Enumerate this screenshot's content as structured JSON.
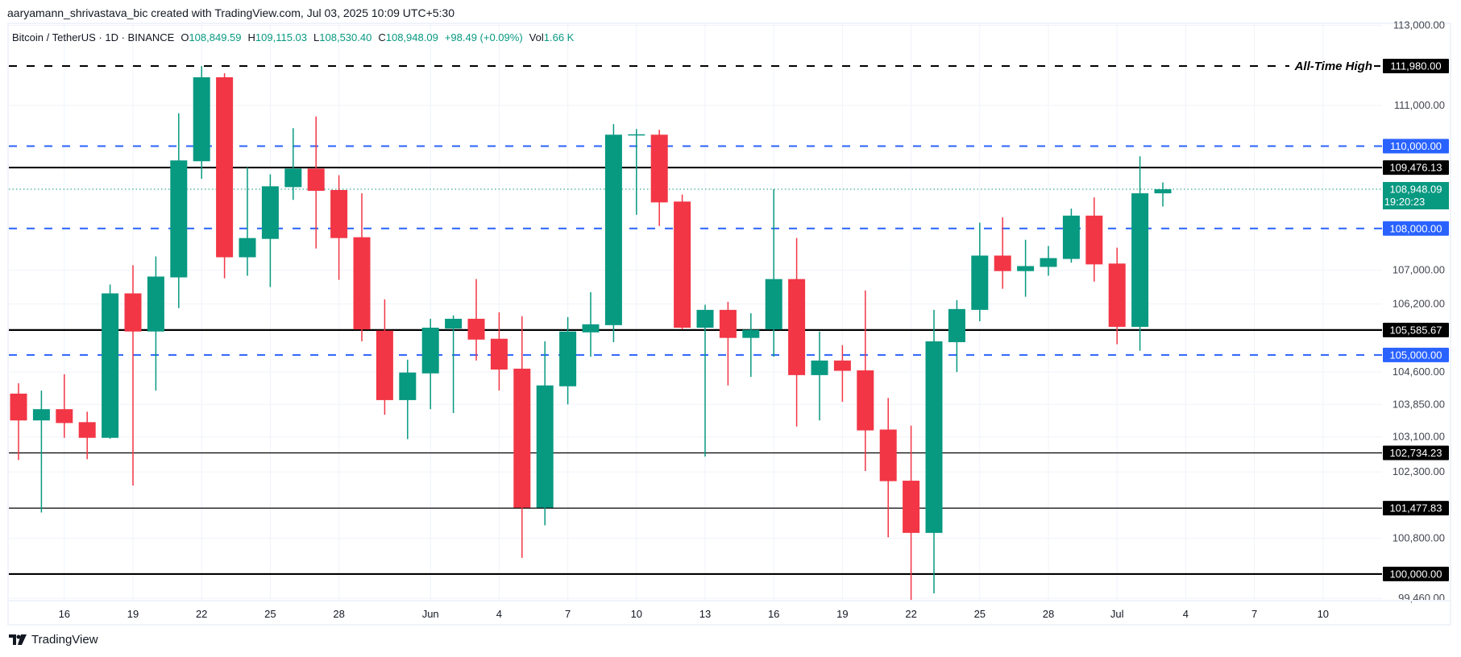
{
  "header": {
    "attribution": "aaryamann_shrivastava_bic created with TradingView.com, Jul 03, 2025 10:09 UTC+5:30"
  },
  "legend": {
    "symbol": "Bitcoin / TetherUS · 1D · BINANCE",
    "open_label": "O",
    "open": "108,849.59",
    "high_label": "H",
    "high": "109,115.03",
    "low_label": "L",
    "low": "108,530.40",
    "close_label": "C",
    "close": "108,948.09",
    "change": "+98.49 (+0.09%)",
    "vol_label": "Vol",
    "vol": "1.66 K"
  },
  "footer": {
    "brand": "TradingView",
    "logo_icon": "tradingview-logo-icon"
  },
  "colors": {
    "up": "#089981",
    "down": "#f23645",
    "level_blue": "#2962ff",
    "level_black": "#000000",
    "grid": "#f0f3fa"
  },
  "chart_data": {
    "type": "candlestick",
    "symbol": "BTCUSDT",
    "interval": "1D",
    "y_scale": "log",
    "ylim": [
      99460,
      113000
    ],
    "grid": true,
    "y_ticks": [
      "113,000.00",
      "111,000.00",
      "107,000.00",
      "106,200.00",
      "104,600.00",
      "103,850.00",
      "103,100.00",
      "102,300.00",
      "100,800.00",
      "99,460.00"
    ],
    "y_tick_values": [
      113000,
      111000,
      107000,
      106200,
      104600,
      103850,
      103100,
      102300,
      100800,
      99460
    ],
    "x_ticks": [
      {
        "label": "16",
        "date": "2025-05-16"
      },
      {
        "label": "19",
        "date": "2025-05-19"
      },
      {
        "label": "22",
        "date": "2025-05-22"
      },
      {
        "label": "25",
        "date": "2025-05-25"
      },
      {
        "label": "28",
        "date": "2025-05-28"
      },
      {
        "label": "Jun",
        "date": "2025-06-01"
      },
      {
        "label": "4",
        "date": "2025-06-04"
      },
      {
        "label": "7",
        "date": "2025-06-07"
      },
      {
        "label": "10",
        "date": "2025-06-10"
      },
      {
        "label": "13",
        "date": "2025-06-13"
      },
      {
        "label": "16",
        "date": "2025-06-16"
      },
      {
        "label": "19",
        "date": "2025-06-19"
      },
      {
        "label": "22",
        "date": "2025-06-22"
      },
      {
        "label": "25",
        "date": "2025-06-25"
      },
      {
        "label": "28",
        "date": "2025-06-28"
      },
      {
        "label": "Jul",
        "date": "2025-07-01"
      },
      {
        "label": "4",
        "date": "2025-07-04"
      },
      {
        "label": "7",
        "date": "2025-07-07"
      },
      {
        "label": "10",
        "date": "2025-07-10"
      }
    ],
    "levels": [
      {
        "price": 111980,
        "label": "111,980.00",
        "style": "dashed-black",
        "annotation": "All-Time High"
      },
      {
        "price": 110000,
        "label": "110,000.00",
        "style": "dashed-blue"
      },
      {
        "price": 109476.13,
        "label": "109,476.13",
        "style": "solid-black"
      },
      {
        "price": 108000,
        "label": "108,000.00",
        "style": "dashed-blue"
      },
      {
        "price": 105585.67,
        "label": "105,585.67",
        "style": "solid-black-thick"
      },
      {
        "price": 105000,
        "label": "105,000.00",
        "style": "dashed-blue"
      },
      {
        "price": 102734.23,
        "label": "102,734.23",
        "style": "solid-black-thin"
      },
      {
        "price": 101477.83,
        "label": "101,477.83",
        "style": "solid-black-thin"
      },
      {
        "price": 100000,
        "label": "100,000.00",
        "style": "solid-black-thick"
      }
    ],
    "last_price": {
      "price": 108948.09,
      "label": "108,948.09",
      "countdown": "19:20:23"
    },
    "candles": [
      {
        "d": "2025-05-14",
        "o": 104100,
        "h": 104340,
        "l": 102570,
        "c": 103480
      },
      {
        "d": "2025-05-15",
        "o": 103480,
        "h": 104170,
        "l": 101380,
        "c": 103740
      },
      {
        "d": "2025-05-16",
        "o": 103740,
        "h": 104550,
        "l": 103080,
        "c": 103420
      },
      {
        "d": "2025-05-17",
        "o": 103440,
        "h": 103680,
        "l": 102590,
        "c": 103080
      },
      {
        "d": "2025-05-18",
        "o": 103080,
        "h": 106660,
        "l": 103060,
        "c": 106450
      },
      {
        "d": "2025-05-19",
        "o": 106450,
        "h": 107120,
        "l": 101990,
        "c": 105550
      },
      {
        "d": "2025-05-20",
        "o": 105550,
        "h": 107330,
        "l": 104170,
        "c": 106850
      },
      {
        "d": "2025-05-21",
        "o": 106830,
        "h": 110810,
        "l": 106100,
        "c": 109650
      },
      {
        "d": "2025-05-22",
        "o": 109630,
        "h": 111980,
        "l": 109200,
        "c": 111700
      },
      {
        "d": "2025-05-23",
        "o": 111700,
        "h": 111800,
        "l": 106810,
        "c": 107310
      },
      {
        "d": "2025-05-24",
        "o": 107310,
        "h": 109480,
        "l": 106870,
        "c": 107770
      },
      {
        "d": "2025-05-25",
        "o": 107750,
        "h": 109310,
        "l": 106600,
        "c": 109020
      },
      {
        "d": "2025-05-26",
        "o": 109000,
        "h": 110440,
        "l": 108690,
        "c": 109450
      },
      {
        "d": "2025-05-27",
        "o": 109450,
        "h": 110730,
        "l": 107520,
        "c": 108910
      },
      {
        "d": "2025-05-28",
        "o": 108930,
        "h": 109290,
        "l": 106770,
        "c": 107770
      },
      {
        "d": "2025-05-29",
        "o": 107790,
        "h": 108850,
        "l": 105320,
        "c": 105600
      },
      {
        "d": "2025-05-30",
        "o": 105570,
        "h": 106310,
        "l": 103610,
        "c": 103950
      },
      {
        "d": "2025-05-31",
        "o": 103950,
        "h": 104890,
        "l": 103050,
        "c": 104590
      },
      {
        "d": "2025-06-01",
        "o": 104570,
        "h": 105850,
        "l": 103740,
        "c": 105640
      },
      {
        "d": "2025-06-02",
        "o": 105620,
        "h": 105930,
        "l": 103650,
        "c": 105850
      },
      {
        "d": "2025-06-03",
        "o": 105850,
        "h": 106790,
        "l": 104870,
        "c": 105360
      },
      {
        "d": "2025-06-04",
        "o": 105380,
        "h": 106000,
        "l": 104170,
        "c": 104660
      },
      {
        "d": "2025-06-05",
        "o": 104680,
        "h": 105910,
        "l": 100360,
        "c": 101490
      },
      {
        "d": "2025-06-06",
        "o": 101490,
        "h": 105320,
        "l": 101090,
        "c": 104290
      },
      {
        "d": "2025-06-07",
        "o": 104270,
        "h": 105890,
        "l": 103850,
        "c": 105550
      },
      {
        "d": "2025-06-08",
        "o": 105530,
        "h": 106480,
        "l": 104960,
        "c": 105720
      },
      {
        "d": "2025-06-09",
        "o": 105700,
        "h": 110540,
        "l": 105300,
        "c": 110280
      },
      {
        "d": "2025-06-10",
        "o": 110280,
        "h": 110420,
        "l": 108330,
        "c": 110290
      },
      {
        "d": "2025-06-11",
        "o": 110280,
        "h": 110400,
        "l": 108060,
        "c": 108630
      },
      {
        "d": "2025-06-12",
        "o": 108650,
        "h": 108820,
        "l": 105600,
        "c": 105640
      },
      {
        "d": "2025-06-13",
        "o": 105640,
        "h": 106180,
        "l": 102650,
        "c": 106060
      },
      {
        "d": "2025-06-14",
        "o": 106060,
        "h": 106250,
        "l": 104290,
        "c": 105400
      },
      {
        "d": "2025-06-15",
        "o": 105400,
        "h": 105980,
        "l": 104490,
        "c": 105590
      },
      {
        "d": "2025-06-16",
        "o": 105600,
        "h": 108950,
        "l": 104960,
        "c": 106790
      },
      {
        "d": "2025-06-17",
        "o": 106790,
        "h": 107770,
        "l": 103340,
        "c": 104530
      },
      {
        "d": "2025-06-18",
        "o": 104530,
        "h": 105550,
        "l": 103480,
        "c": 104870
      },
      {
        "d": "2025-06-19",
        "o": 104870,
        "h": 105230,
        "l": 103910,
        "c": 104630
      },
      {
        "d": "2025-06-20",
        "o": 104640,
        "h": 106520,
        "l": 102320,
        "c": 103250
      },
      {
        "d": "2025-06-21",
        "o": 103270,
        "h": 104000,
        "l": 100820,
        "c": 102090
      },
      {
        "d": "2025-06-22",
        "o": 102100,
        "h": 103360,
        "l": 99390,
        "c": 100920
      },
      {
        "d": "2025-06-23",
        "o": 100920,
        "h": 106060,
        "l": 99570,
        "c": 105320
      },
      {
        "d": "2025-06-24",
        "o": 105300,
        "h": 106290,
        "l": 104600,
        "c": 106080
      },
      {
        "d": "2025-06-25",
        "o": 106060,
        "h": 108140,
        "l": 105790,
        "c": 107350
      },
      {
        "d": "2025-06-26",
        "o": 107350,
        "h": 108270,
        "l": 106560,
        "c": 106980
      },
      {
        "d": "2025-06-27",
        "o": 106980,
        "h": 107730,
        "l": 106370,
        "c": 107100
      },
      {
        "d": "2025-06-28",
        "o": 107080,
        "h": 107580,
        "l": 106870,
        "c": 107290
      },
      {
        "d": "2025-06-29",
        "o": 107270,
        "h": 108480,
        "l": 107180,
        "c": 108310
      },
      {
        "d": "2025-06-30",
        "o": 108310,
        "h": 108750,
        "l": 106730,
        "c": 107140
      },
      {
        "d": "2025-07-01",
        "o": 107160,
        "h": 107540,
        "l": 105250,
        "c": 105660
      },
      {
        "d": "2025-07-02",
        "o": 105660,
        "h": 109750,
        "l": 105100,
        "c": 108850
      },
      {
        "d": "2025-07-03",
        "o": 108849.59,
        "h": 109115.03,
        "l": 108530.4,
        "c": 108948.09
      }
    ]
  }
}
